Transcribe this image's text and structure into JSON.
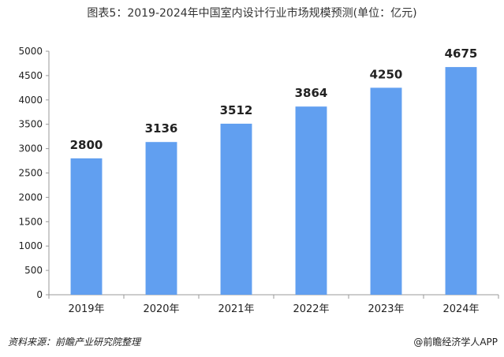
{
  "title": "图表5：2019-2024年中国室内设计行业市场规模预测(单位：亿元)",
  "footer": {
    "source": "资料来源：前瞻产业研究院整理",
    "credit": "@前瞻经济学人APP"
  },
  "colors": {
    "bar": "#619ff0",
    "axis": "#999999",
    "text": "#222222"
  },
  "chart_data": {
    "type": "bar",
    "title": "图表5：2019-2024年中国室内设计行业市场规模预测(单位：亿元)",
    "xlabel": "",
    "ylabel": "",
    "categories": [
      "2019年",
      "2020年",
      "2021年",
      "2022年",
      "2023年",
      "2024年"
    ],
    "values": [
      2800,
      3136,
      3512,
      3864,
      4250,
      4675
    ],
    "data_labels": [
      "2800",
      "3136",
      "3512",
      "3864",
      "4250",
      "4675"
    ],
    "ylim": [
      0,
      5000
    ],
    "yticks": [
      0,
      500,
      1000,
      1500,
      2000,
      2500,
      3000,
      3500,
      4000,
      4500,
      5000
    ],
    "grid": false,
    "legend": "none"
  }
}
